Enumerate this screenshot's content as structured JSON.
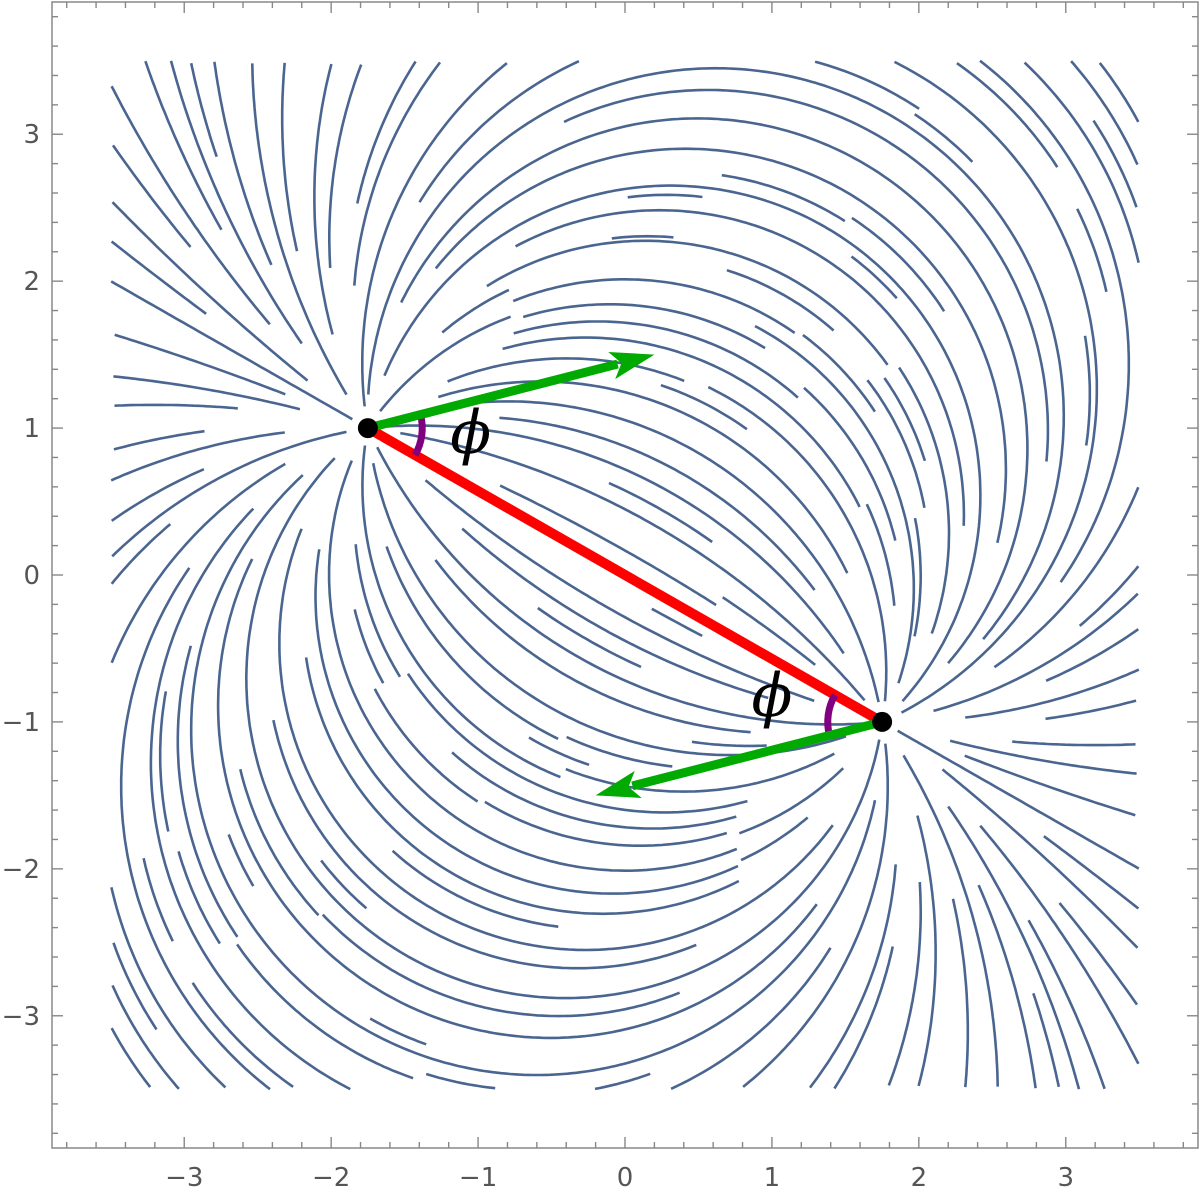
{
  "chart_data": {
    "type": "streamplot",
    "title": "",
    "xlabel": "",
    "ylabel": "",
    "xlim": [
      -3.9,
      3.9
    ],
    "ylim": [
      -3.9,
      3.9
    ],
    "frame": true,
    "grid": false,
    "x_ticks": [
      {
        "value": -3,
        "label": "−3"
      },
      {
        "value": -2,
        "label": "−2"
      },
      {
        "value": -1,
        "label": "−1"
      },
      {
        "value": 0,
        "label": "0"
      },
      {
        "value": 1,
        "label": "1"
      },
      {
        "value": 2,
        "label": "2"
      },
      {
        "value": 3,
        "label": "3"
      }
    ],
    "y_ticks": [
      {
        "value": 3,
        "label": "3"
      },
      {
        "value": 2,
        "label": "2"
      },
      {
        "value": 1,
        "label": "1"
      },
      {
        "value": 0,
        "label": "0"
      },
      {
        "value": -1,
        "label": "−1"
      },
      {
        "value": -2,
        "label": "−2"
      },
      {
        "value": -3,
        "label": "−3"
      }
    ],
    "stream_color": "#4a6590",
    "points": [
      {
        "name": "upper",
        "x": -1.75,
        "y": 1.0
      },
      {
        "name": "lower",
        "x": 1.75,
        "y": -1.0
      }
    ],
    "connector": {
      "from": [
        -1.75,
        1.0
      ],
      "to": [
        1.75,
        -1.0
      ],
      "color": "#ff0000"
    },
    "arrows": [
      {
        "from": [
          -1.75,
          1.0
        ],
        "to": [
          0.2,
          1.5
        ],
        "color": "#00aa00"
      },
      {
        "from": [
          1.75,
          -1.0
        ],
        "to": [
          -0.2,
          -1.5
        ],
        "color": "#00aa00"
      }
    ],
    "angle_arcs": {
      "color": "#800080",
      "radius": 0.37
    },
    "angle_labels": [
      {
        "text": "ϕ",
        "x": -1.05,
        "y": 0.83
      },
      {
        "text": "ϕ",
        "x": 1.0,
        "y": -0.96
      }
    ]
  }
}
